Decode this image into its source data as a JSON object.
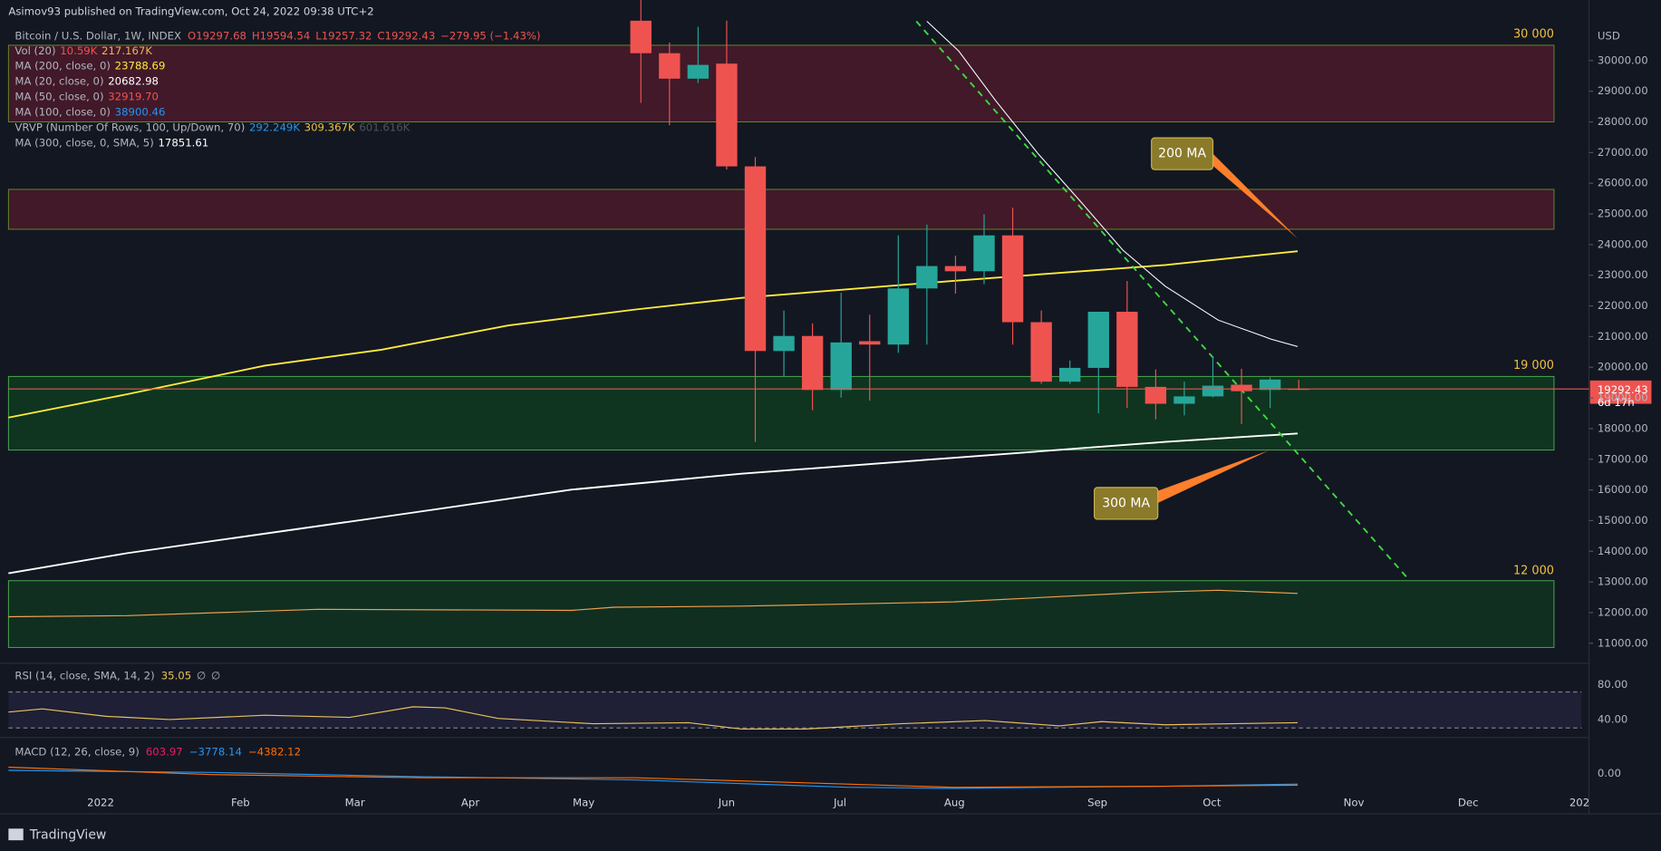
{
  "header": "Asimov93 published on TradingView.com, Oct 24, 2022 09:38 UTC+2",
  "footer": "TradingView",
  "chart_data": {
    "type": "candlestick",
    "title": "Bitcoin / U.S. Dollar, 1W, INDEX",
    "quote": [
      "O19297.68",
      "H19594.54",
      "L19257.32",
      "C19292.43",
      "−279.95 (−1.43%)"
    ],
    "indicators": [
      {
        "name": "Vol (20)",
        "values": [
          "10.59K",
          "217.167K"
        ],
        "colors": [
          "#ef5350",
          "#f0b35a"
        ]
      },
      {
        "name": "MA (200, close, 0)",
        "values": [
          "23788.69"
        ],
        "colors": [
          "#ffeb3b"
        ]
      },
      {
        "name": "MA (20, close, 0)",
        "values": [
          "20682.98"
        ],
        "colors": [
          "#ffffff"
        ]
      },
      {
        "name": "MA (50, close, 0)",
        "values": [
          "32919.70"
        ],
        "colors": [
          "#ef5350"
        ]
      },
      {
        "name": "MA (100, close, 0)",
        "values": [
          "38900.46"
        ],
        "colors": [
          "#2196f3"
        ]
      },
      {
        "name": "VRVP (Number Of Rows, 100, Up/Down, 70)",
        "values": [
          "292.249K",
          "309.367K",
          "601.616K"
        ],
        "colors": [
          "#2196f3",
          "#f0c040",
          "#50535e"
        ]
      },
      {
        "name": "MA (300, close, 0, SMA, 5)",
        "values": [
          "17851.61"
        ],
        "colors": [
          "#ffffff"
        ]
      }
    ],
    "up_color": "#26a69a",
    "down_color": "#ef5350",
    "open": [
      31300,
      30240,
      29410,
      29900,
      26550,
      20530,
      21020,
      19260,
      20850,
      20740,
      22570,
      23300,
      23130,
      24300,
      21470,
      19530,
      19980,
      21810,
      19360,
      18810,
      19050,
      19430,
      19260,
      19297.68
    ],
    "high": [
      32200,
      30590,
      31100,
      31300,
      26850,
      21850,
      21430,
      22430,
      21710,
      24300,
      24650,
      23640,
      24990,
      25200,
      21850,
      20220,
      21810,
      22810,
      19930,
      19530,
      20360,
      19950,
      19670,
      19594.54
    ],
    "low": [
      28620,
      27890,
      29270,
      26450,
      17560,
      19700,
      18600,
      19010,
      18910,
      20470,
      20740,
      22400,
      22710,
      20740,
      19460,
      19460,
      18500,
      18670,
      18300,
      18430,
      19020,
      18150,
      18670,
      19257.32
    ],
    "close": [
      30240,
      29410,
      29860,
      26550,
      20530,
      21020,
      19260,
      20810,
      20740,
      22570,
      23300,
      23130,
      24300,
      21470,
      19530,
      19980,
      21810,
      19360,
      18810,
      19050,
      19400,
      19220,
      19600,
      19292.43
    ],
    "ylim": [
      10380,
      31280
    ],
    "y_unit": "USD",
    "yticks": [
      {
        "value": 11000,
        "label": "11000.00"
      },
      {
        "value": 12000,
        "label": "12000.00"
      },
      {
        "value": 13000,
        "label": "13000.00"
      },
      {
        "value": 14000,
        "label": "14000.00"
      },
      {
        "value": 15000,
        "label": "15000.00"
      },
      {
        "value": 16000,
        "label": "16000.00"
      },
      {
        "value": 17000,
        "label": "17000.00"
      },
      {
        "value": 18000,
        "label": "18000.00"
      },
      {
        "value": 19000,
        "label": "19000.00"
      },
      {
        "value": 20000,
        "label": "20000.00"
      },
      {
        "value": 21000,
        "label": "21000.00"
      },
      {
        "value": 22000,
        "label": "22000.00"
      },
      {
        "value": 23000,
        "label": "23000.00"
      },
      {
        "value": 24000,
        "label": "24000.00"
      },
      {
        "value": 25000,
        "label": "25000.00"
      },
      {
        "value": 26000,
        "label": "26000.00"
      },
      {
        "value": 27000,
        "label": "27000.00"
      },
      {
        "value": 28000,
        "label": "28000.00"
      },
      {
        "value": 29000,
        "label": "29000.00"
      },
      {
        "value": 30000,
        "label": "30000.00"
      }
    ],
    "last_price": {
      "value": 19292.43,
      "label": "19292.43",
      "countdown": "6d 17h"
    },
    "zones": [
      {
        "low": 28000,
        "high": 30500,
        "color": "#4a1a2a",
        "label": "30 000"
      },
      {
        "low": 24500,
        "high": 25800,
        "color": "#4a1a2a"
      },
      {
        "low": 17300,
        "high": 19700,
        "color": "#0f3a1f",
        "label": "19 000"
      }
    ],
    "volume_zone_label": "12 000",
    "annotations": [
      "200 MA",
      "300 MA"
    ],
    "x_labels": [
      "2022",
      "Feb",
      "Mar",
      "Apr",
      "May",
      "Jun",
      "Jul",
      "Aug",
      "Sep",
      "Oct",
      "Nov",
      "Dec",
      "202"
    ],
    "rsi": {
      "title": "RSI (14, close, SMA, 14, 2)",
      "values": [
        "35.05",
        "∅",
        "∅"
      ],
      "ticks": [
        "80.00",
        "40.00"
      ]
    },
    "macd": {
      "title": "MACD (12, 26, close, 9)",
      "values": [
        "603.97",
        "−3778.14",
        "−4382.12"
      ],
      "ticks": [
        "0.00"
      ]
    }
  }
}
